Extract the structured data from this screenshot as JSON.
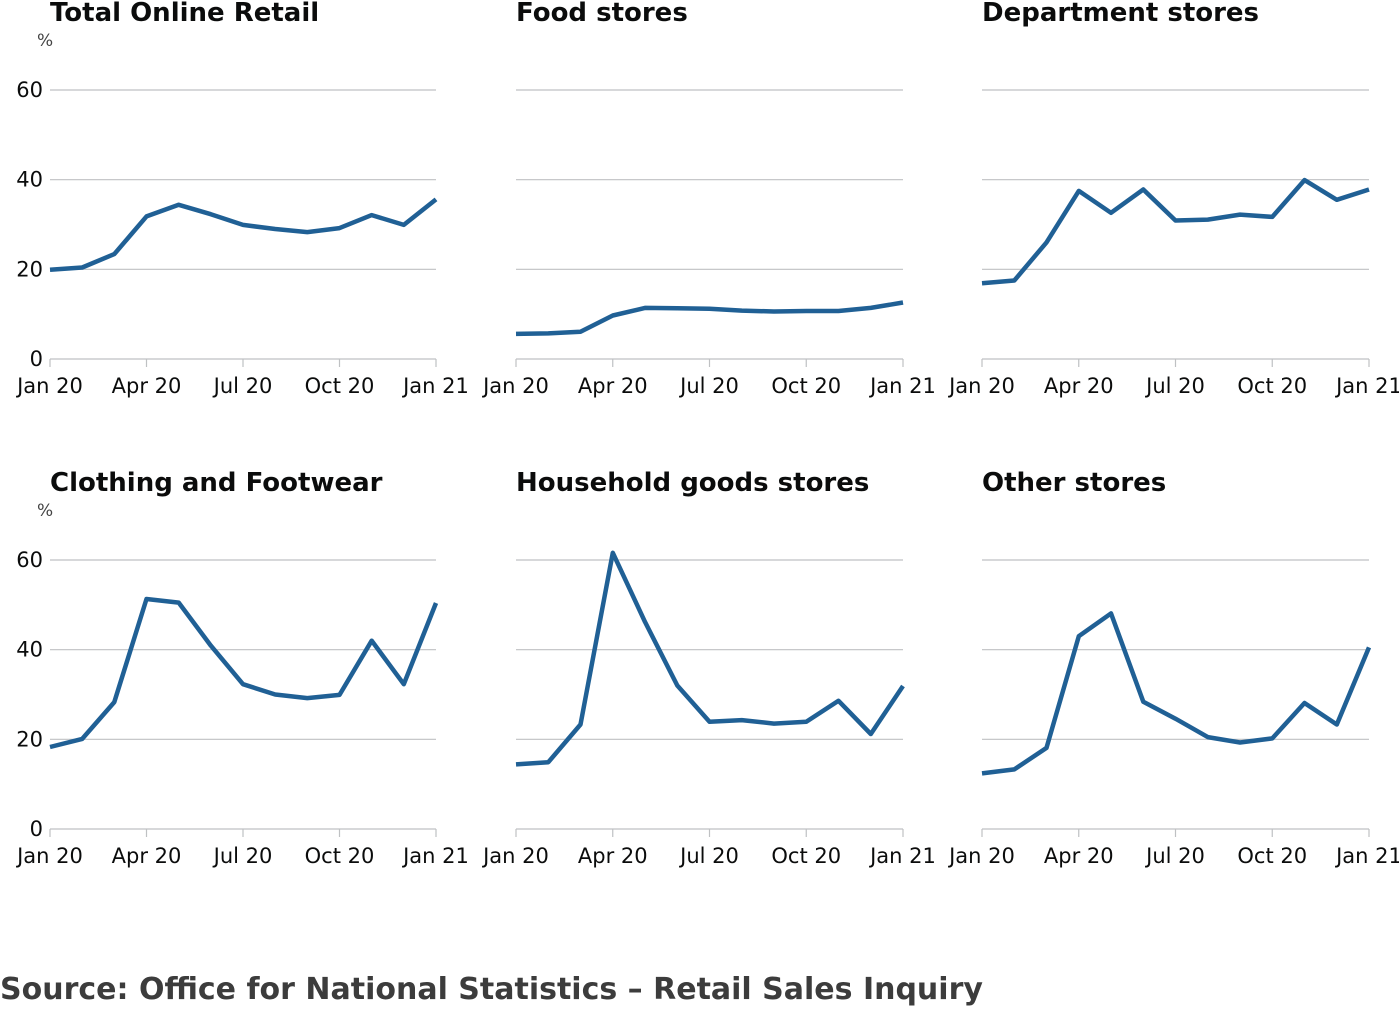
{
  "chart_data": [
    {
      "type": "line",
      "title": "Total Online Retail",
      "unit": "%",
      "xticks": [
        "Jan 20",
        "Apr 20",
        "Jul 20",
        "Oct 20",
        "Jan 21"
      ],
      "yticks": [
        "0",
        "20",
        "40",
        "60"
      ],
      "ylim": [
        0,
        60
      ],
      "x": [
        "Jan 20",
        "Feb 20",
        "Mar 20",
        "Apr 20",
        "May 20",
        "Jun 20",
        "Jul 20",
        "Aug 20",
        "Sep 20",
        "Oct 20",
        "Nov 20",
        "Dec 20",
        "Jan 21"
      ],
      "values": [
        19.9,
        20.4,
        23.4,
        31.8,
        34.4,
        32.3,
        29.9,
        29.0,
        28.3,
        29.2,
        32.1,
        29.9,
        35.6
      ],
      "color": "#206095"
    },
    {
      "type": "line",
      "title": "Food stores",
      "xticks": [
        "Jan 20",
        "Apr 20",
        "Jul 20",
        "Oct 20",
        "Jan 21"
      ],
      "ylim": [
        0,
        60
      ],
      "x": [
        "Jan 20",
        "Feb 20",
        "Mar 20",
        "Apr 20",
        "May 20",
        "Jun 20",
        "Jul 20",
        "Aug 20",
        "Sep 20",
        "Oct 20",
        "Nov 20",
        "Dec 20",
        "Jan 21"
      ],
      "values": [
        5.6,
        5.7,
        6.1,
        9.7,
        11.4,
        11.3,
        11.2,
        10.8,
        10.6,
        10.7,
        10.7,
        11.4,
        12.6
      ],
      "color": "#206095"
    },
    {
      "type": "line",
      "title": "Department stores",
      "xticks": [
        "Jan 20",
        "Apr 20",
        "Jul 20",
        "Oct 20",
        "Jan 21"
      ],
      "ylim": [
        0,
        60
      ],
      "x": [
        "Jan 20",
        "Feb 20",
        "Mar 20",
        "Apr 20",
        "May 20",
        "Jun 20",
        "Jul 20",
        "Aug 20",
        "Sep 20",
        "Oct 20",
        "Nov 20",
        "Dec 20",
        "Jan 21"
      ],
      "values": [
        16.9,
        17.5,
        26.0,
        37.5,
        32.6,
        37.8,
        30.9,
        31.1,
        32.2,
        31.7,
        39.9,
        35.5,
        37.8
      ],
      "color": "#206095"
    },
    {
      "type": "line",
      "title": "Clothing and Footwear",
      "unit": "%",
      "xticks": [
        "Jan 20",
        "Apr 20",
        "Jul 20",
        "Oct 20",
        "Jan 21"
      ],
      "yticks": [
        "0",
        "20",
        "40",
        "60"
      ],
      "ylim": [
        0,
        60
      ],
      "x": [
        "Jan 20",
        "Feb 20",
        "Mar 20",
        "Apr 20",
        "May 20",
        "Jun 20",
        "Jul 20",
        "Aug 20",
        "Sep 20",
        "Oct 20",
        "Nov 20",
        "Dec 20",
        "Jan 21"
      ],
      "values": [
        18.3,
        20.1,
        28.3,
        51.3,
        50.5,
        40.9,
        32.3,
        30.0,
        29.2,
        29.9,
        42.0,
        32.3,
        50.4
      ],
      "color": "#206095"
    },
    {
      "type": "line",
      "title": "Household goods stores",
      "xticks": [
        "Jan 20",
        "Apr 20",
        "Jul 20",
        "Oct 20",
        "Jan 21"
      ],
      "ylim": [
        0,
        60
      ],
      "x": [
        "Jan 20",
        "Feb 20",
        "Mar 20",
        "Apr 20",
        "May 20",
        "Jun 20",
        "Jul 20",
        "Aug 20",
        "Sep 20",
        "Oct 20",
        "Nov 20",
        "Dec 20",
        "Jan 21"
      ],
      "values": [
        14.4,
        14.9,
        23.3,
        61.6,
        46.2,
        32.0,
        23.9,
        24.3,
        23.5,
        23.9,
        28.6,
        21.2,
        31.9
      ],
      "color": "#206095"
    },
    {
      "type": "line",
      "title": "Other stores",
      "xticks": [
        "Jan 20",
        "Apr 20",
        "Jul 20",
        "Oct 20",
        "Jan 21"
      ],
      "ylim": [
        0,
        60
      ],
      "x": [
        "Jan 20",
        "Feb 20",
        "Mar 20",
        "Apr 20",
        "May 20",
        "Jun 20",
        "Jul 20",
        "Aug 20",
        "Sep 20",
        "Oct 20",
        "Nov 20",
        "Dec 20",
        "Jan 21"
      ],
      "values": [
        12.4,
        13.3,
        18.1,
        43.0,
        48.1,
        28.4,
        24.6,
        20.5,
        19.3,
        20.2,
        28.1,
        23.3,
        40.5
      ],
      "color": "#206095"
    }
  ],
  "source": "Source: Office for National Statistics – Retail Sales Inquiry"
}
